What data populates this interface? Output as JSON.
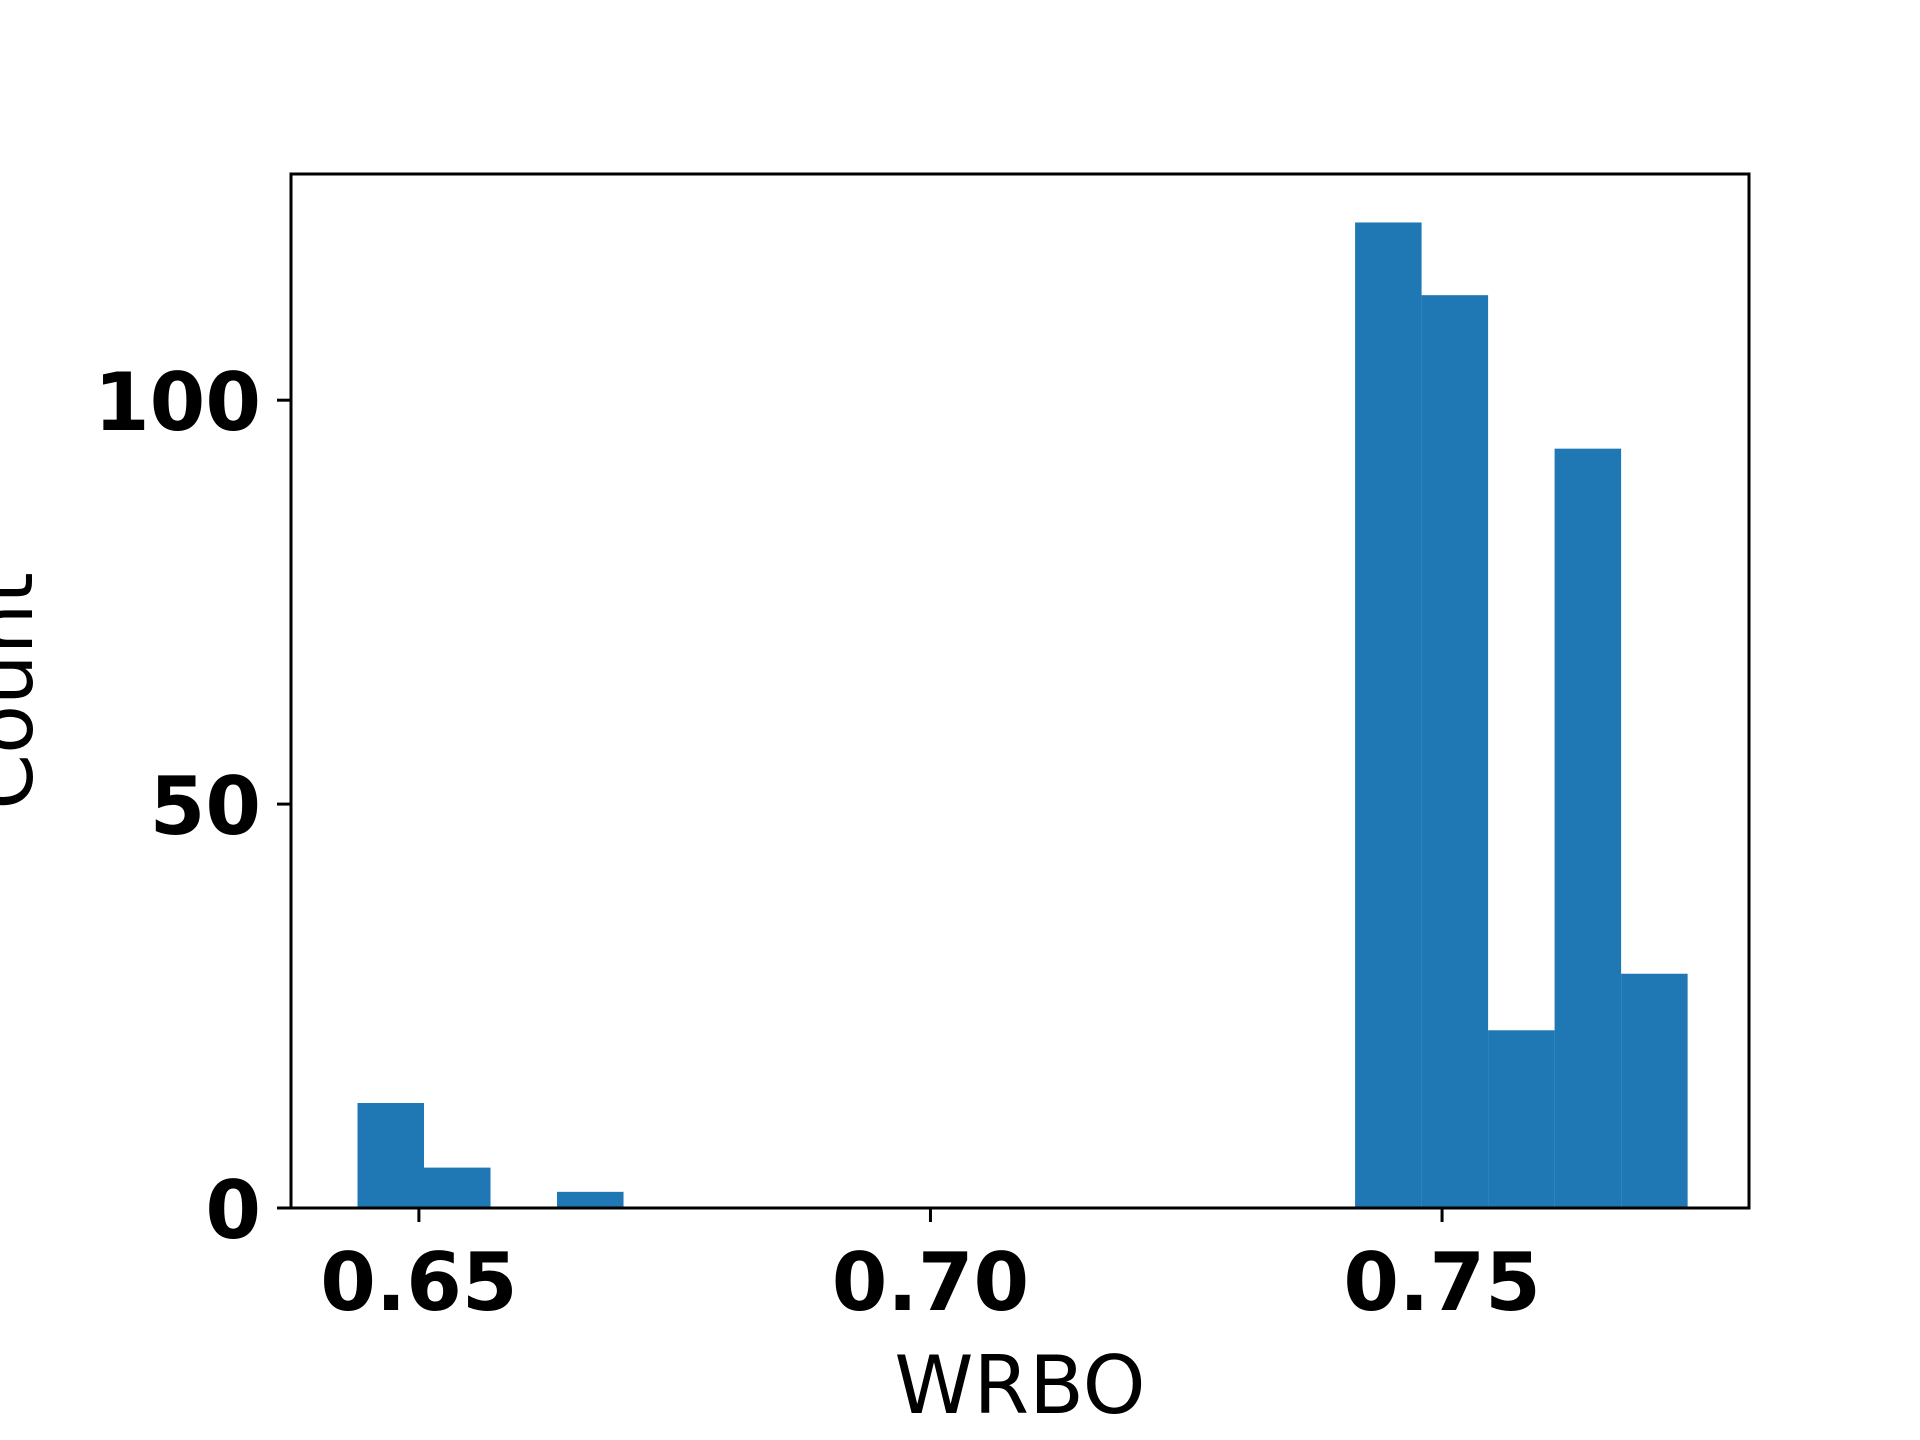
{
  "chart_data": {
    "type": "bar",
    "subtype": "histogram",
    "xlabel": "WRBO",
    "ylabel": "Count",
    "xlim": [
      0.6375,
      0.78
    ],
    "ylim": [
      0,
      128
    ],
    "bin_width": 0.0065,
    "xticks": [
      {
        "value": 0.65,
        "label": "0.65"
      },
      {
        "value": 0.7,
        "label": "0.70"
      },
      {
        "value": 0.75,
        "label": "0.75"
      }
    ],
    "yticks": [
      {
        "value": 0,
        "label": "0"
      },
      {
        "value": 50,
        "label": "50"
      },
      {
        "value": 100,
        "label": "100"
      }
    ],
    "bins": [
      {
        "start": 0.644,
        "end": 0.6505,
        "count": 13
      },
      {
        "start": 0.6505,
        "end": 0.657,
        "count": 5
      },
      {
        "start": 0.657,
        "end": 0.6635,
        "count": 0
      },
      {
        "start": 0.6635,
        "end": 0.67,
        "count": 2
      },
      {
        "start": 0.7415,
        "end": 0.748,
        "count": 122
      },
      {
        "start": 0.748,
        "end": 0.7545,
        "count": 113
      },
      {
        "start": 0.7545,
        "end": 0.761,
        "count": 22
      },
      {
        "start": 0.761,
        "end": 0.7675,
        "count": 94
      },
      {
        "start": 0.7675,
        "end": 0.774,
        "count": 29
      }
    ],
    "bar_color": "#1f77b4",
    "grid": false,
    "legend": "none"
  }
}
